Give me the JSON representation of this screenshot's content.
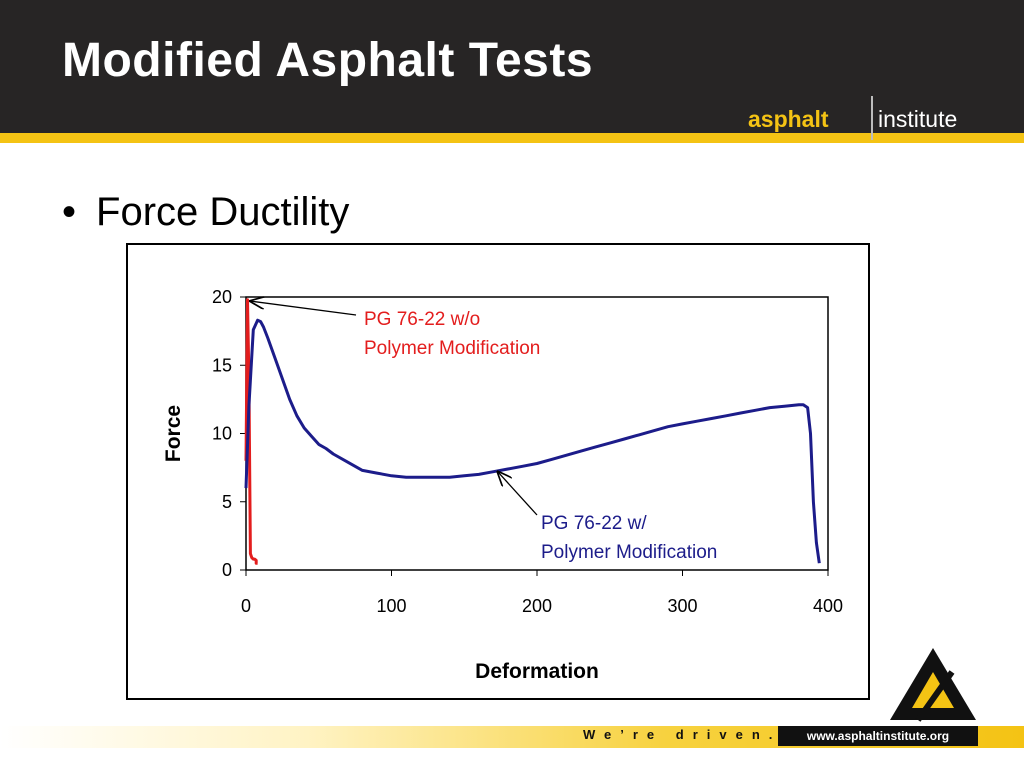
{
  "slide": {
    "title": "Modified Asphalt Tests",
    "bullet": "Force Ductility",
    "bullet_marker": "•"
  },
  "logo": {
    "word1": "asphalt",
    "word2": "institute"
  },
  "footer": {
    "tagline": "We’re driven.",
    "url": "www.asphaltinstitute.org"
  },
  "colors": {
    "header_bg": "#272525",
    "accent": "#f4c314",
    "series_unmodified": "#e31d1d",
    "series_modified": "#1c1c8a"
  },
  "chart_data": {
    "type": "line",
    "title": "",
    "xlabel": "Deformation",
    "ylabel": "Force",
    "xlim": [
      0,
      400
    ],
    "ylim": [
      0,
      20
    ],
    "xticks": [
      0,
      100,
      200,
      300,
      400
    ],
    "yticks": [
      0,
      5,
      10,
      15,
      20
    ],
    "grid": false,
    "series": [
      {
        "name": "PG 76-22 w/o Polymer Modification",
        "color": "#e31d1d",
        "x": [
          0,
          1,
          2,
          3,
          4,
          5,
          6,
          7,
          7,
          8
        ],
        "y": [
          8,
          19.8,
          14,
          1.2,
          0.9,
          0.8,
          0.8,
          0.7,
          0.5,
          0.5
        ]
      },
      {
        "name": "PG 76-22 w/ Polymer Modification",
        "color": "#1c1c8a",
        "x": [
          0,
          2,
          5,
          8,
          10,
          12,
          15,
          20,
          25,
          30,
          35,
          40,
          45,
          50,
          55,
          60,
          70,
          80,
          90,
          100,
          110,
          120,
          130,
          140,
          150,
          160,
          170,
          180,
          190,
          200,
          210,
          220,
          230,
          240,
          250,
          260,
          270,
          280,
          290,
          300,
          310,
          320,
          330,
          340,
          350,
          360,
          370,
          380,
          383,
          386,
          388,
          390,
          392,
          394
        ],
        "y": [
          6,
          12,
          17.6,
          18.3,
          18.2,
          17.8,
          17,
          15.5,
          14,
          12.5,
          11.3,
          10.4,
          9.8,
          9.2,
          8.9,
          8.5,
          7.9,
          7.3,
          7.1,
          6.9,
          6.8,
          6.8,
          6.8,
          6.8,
          6.9,
          7.0,
          7.2,
          7.4,
          7.6,
          7.8,
          8.1,
          8.4,
          8.7,
          9.0,
          9.3,
          9.6,
          9.9,
          10.2,
          10.5,
          10.7,
          10.9,
          11.1,
          11.3,
          11.5,
          11.7,
          11.9,
          12.0,
          12.1,
          12.1,
          11.9,
          10.0,
          5.0,
          2.0,
          0.5
        ]
      }
    ],
    "annotations": [
      {
        "series": 0,
        "lines": [
          "PG 76-22 w/o",
          "Polymer Modification"
        ],
        "color": "#e31d1d",
        "point": [
          3,
          19.7
        ]
      },
      {
        "series": 1,
        "lines": [
          "PG 76-22 w/",
          "Polymer Modification"
        ],
        "color": "#1c1c8a",
        "point": [
          173,
          7.2
        ]
      }
    ]
  }
}
